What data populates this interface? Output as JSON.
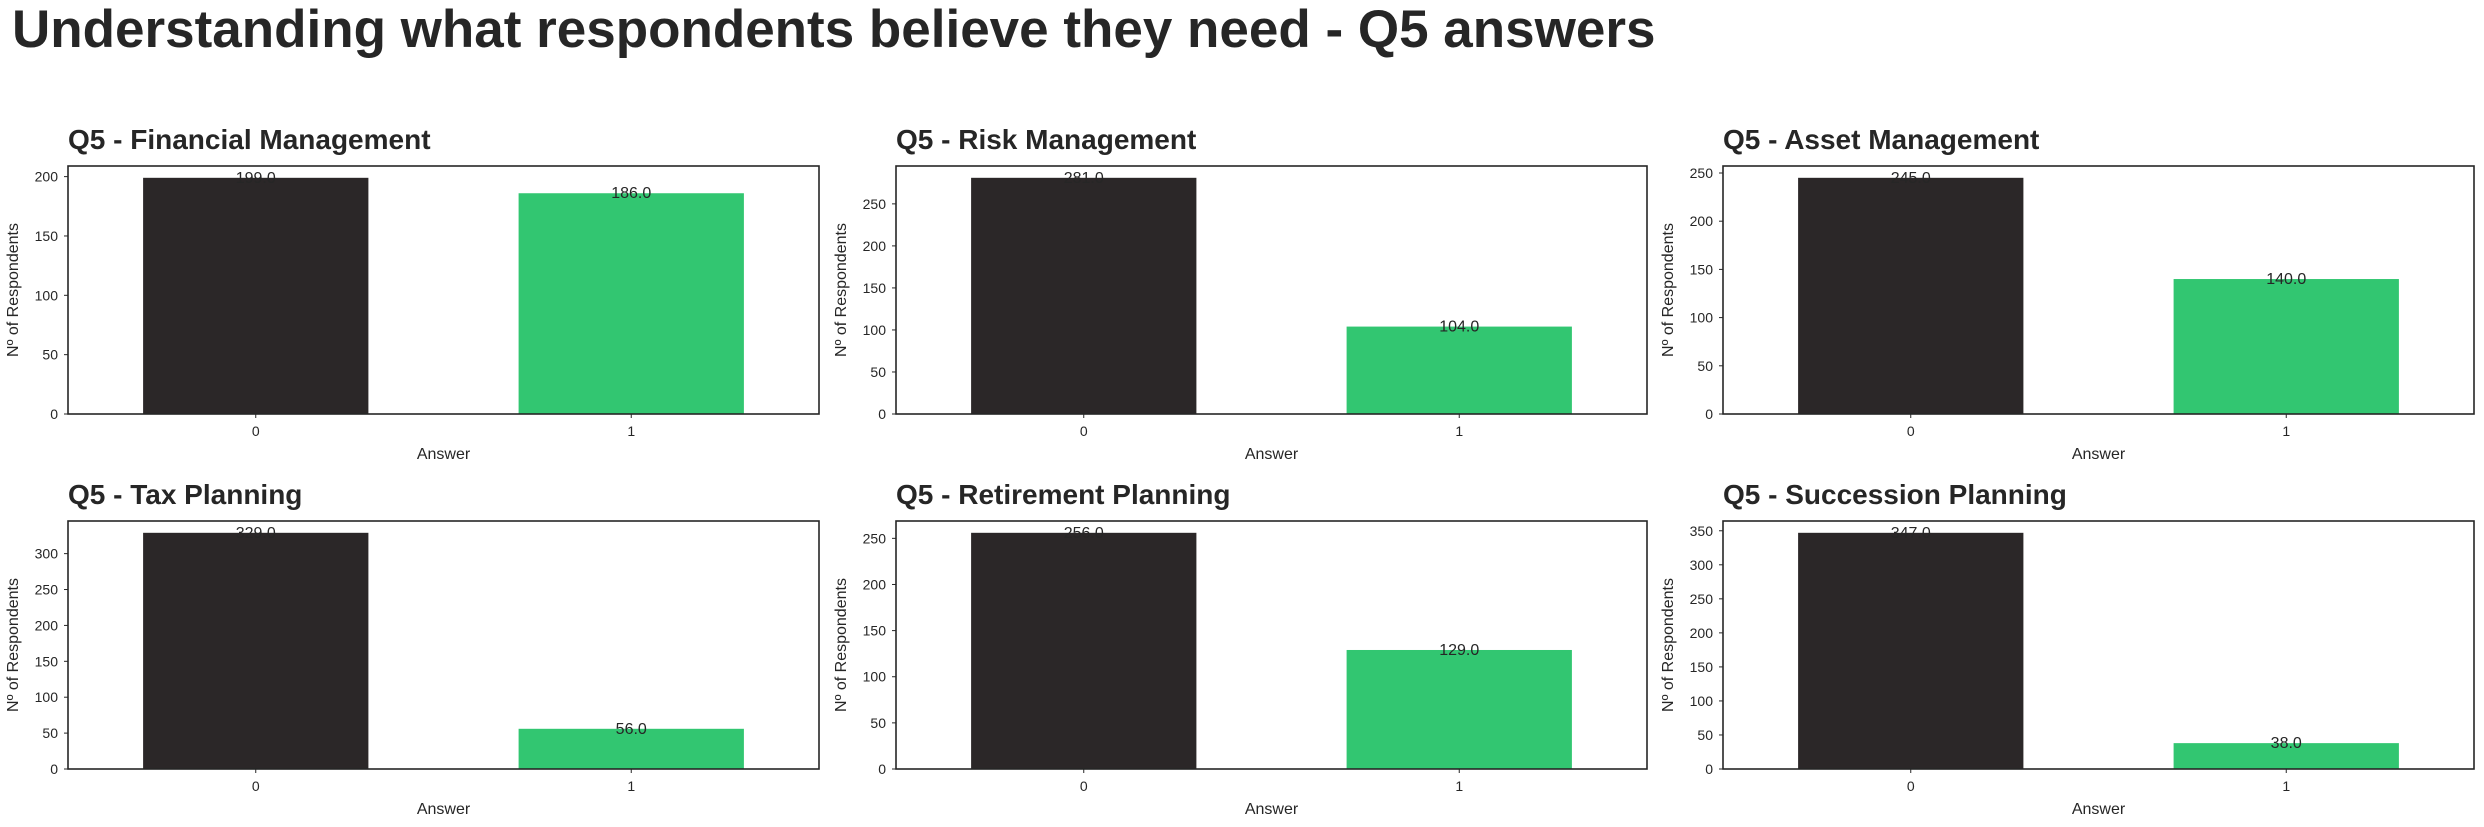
{
  "suptitle": "Understanding what respondents believe they need - Q5 answers",
  "colors": {
    "bar_0": "#2b2728",
    "bar_1": "#32c671",
    "frame": "#262626",
    "text": "#262626"
  },
  "chart_data": [
    {
      "type": "bar",
      "title": "Q5 - Financial Management",
      "xlabel": "Answer",
      "ylabel": "Nº of Respondents",
      "categories": [
        "0",
        "1"
      ],
      "values": [
        199.0,
        186.0
      ],
      "data_labels": [
        "199.0",
        "186.0"
      ],
      "ylim": [
        0,
        208.95
      ],
      "yticks": [
        0,
        50,
        100,
        150,
        200
      ],
      "grid": false
    },
    {
      "type": "bar",
      "title": "Q5 - Risk Management",
      "xlabel": "Answer",
      "ylabel": "Nº of Respondents",
      "categories": [
        "0",
        "1"
      ],
      "values": [
        281.0,
        104.0
      ],
      "data_labels": [
        "281.0",
        "104.0"
      ],
      "ylim": [
        0,
        295.05
      ],
      "yticks": [
        0,
        50,
        100,
        150,
        200,
        250
      ],
      "grid": false
    },
    {
      "type": "bar",
      "title": "Q5 - Asset Management",
      "xlabel": "Answer",
      "ylabel": "Nº of Respondents",
      "categories": [
        "0",
        "1"
      ],
      "values": [
        245.0,
        140.0
      ],
      "data_labels": [
        "245.0",
        "140.0"
      ],
      "ylim": [
        0,
        257.25
      ],
      "yticks": [
        0,
        50,
        100,
        150,
        200,
        250
      ],
      "grid": false
    },
    {
      "type": "bar",
      "title": "Q5 - Tax Planning",
      "xlabel": "Answer",
      "ylabel": "Nº of Respondents",
      "categories": [
        "0",
        "1"
      ],
      "values": [
        329.0,
        56.0
      ],
      "data_labels": [
        "329.0",
        "56.0"
      ],
      "ylim": [
        0,
        345.45
      ],
      "yticks": [
        0,
        50,
        100,
        150,
        200,
        250,
        300
      ],
      "grid": false
    },
    {
      "type": "bar",
      "title": "Q5 - Retirement Planning",
      "xlabel": "Answer",
      "ylabel": "Nº of Respondents",
      "categories": [
        "0",
        "1"
      ],
      "values": [
        256.0,
        129.0
      ],
      "data_labels": [
        "256.0",
        "129.0"
      ],
      "ylim": [
        0,
        268.8
      ],
      "yticks": [
        0,
        50,
        100,
        150,
        200,
        250
      ],
      "grid": false
    },
    {
      "type": "bar",
      "title": "Q5 - Succession Planning",
      "xlabel": "Answer",
      "ylabel": "Nº of Respondents",
      "categories": [
        "0",
        "1"
      ],
      "values": [
        347.0,
        38.0
      ],
      "data_labels": [
        "347.0",
        "38.0"
      ],
      "ylim": [
        0,
        364.35
      ],
      "yticks": [
        0,
        50,
        100,
        150,
        200,
        250,
        300,
        350
      ],
      "grid": false
    }
  ]
}
